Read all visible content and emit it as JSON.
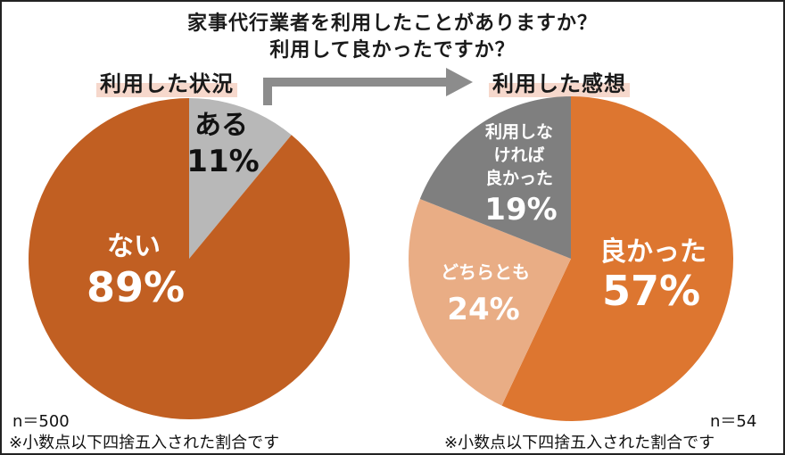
{
  "title_line1": "家事代行業者を利用したことがありますか？",
  "title_line2": "利用して良かったですか？",
  "colors": {
    "orange_dark": "#c15f22",
    "orange": "#dd7630",
    "peach": "#e9ad85",
    "gray_light": "#b8b8b8",
    "gray_dark": "#7f7f7f",
    "arrow": "#8c8c8c"
  },
  "chart_data": [
    {
      "type": "pie",
      "title": "利用した状況",
      "slices": [
        {
          "label": "ある",
          "value": 11,
          "value_label": "11%"
        },
        {
          "label": "ない",
          "value": 89,
          "value_label": "89%"
        }
      ],
      "n_label": "n＝500",
      "note": "※小数点以下四捨五入された割合です"
    },
    {
      "type": "pie",
      "title": "利用した感想",
      "slices": [
        {
          "label": "良かった",
          "value": 57,
          "value_label": "57%"
        },
        {
          "label": "どちらとも",
          "value": 24,
          "value_label": "24%"
        },
        {
          "label_lines": [
            "利用しな",
            "ければ",
            "良かった"
          ],
          "value": 19,
          "value_label": "19%"
        }
      ],
      "n_label": "n＝54",
      "note": "※小数点以下四捨五入された割合です"
    }
  ]
}
